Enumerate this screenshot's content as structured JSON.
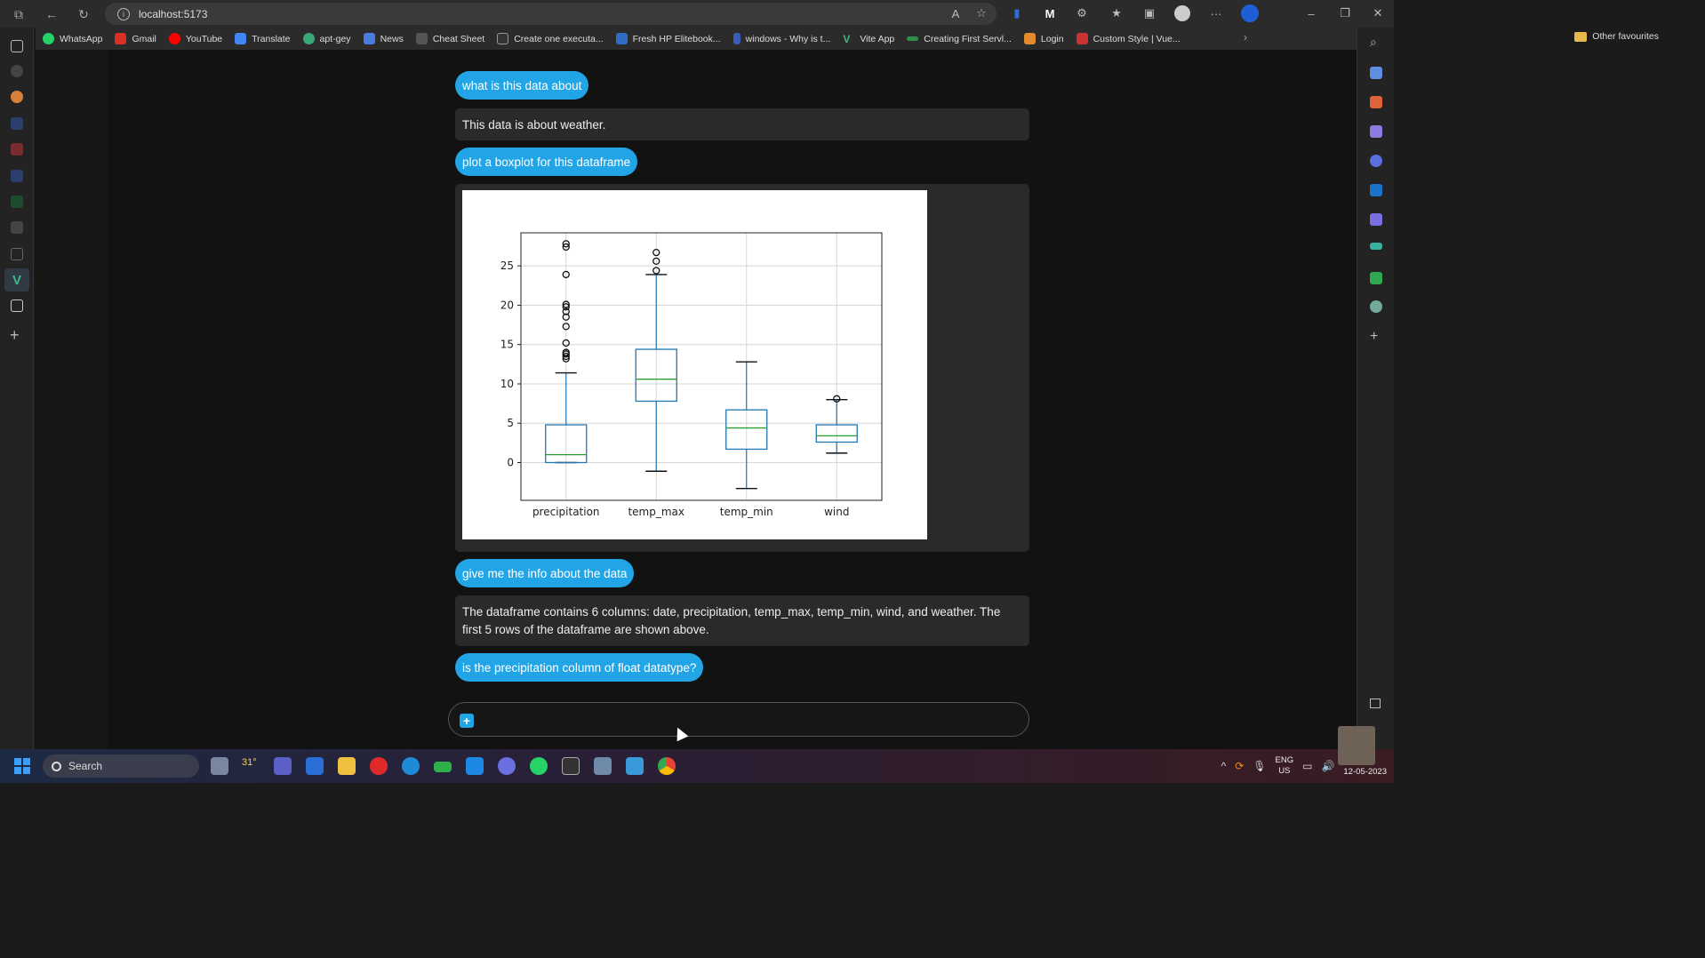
{
  "browser": {
    "url": "localhost:5173",
    "bookmarks": [
      "WhatsApp",
      "Gmail",
      "YouTube",
      "Translate",
      "apt-gey",
      "News",
      "Cheat Sheet",
      "Create one executa...",
      "Fresh HP Elitebook...",
      "windows - Why is t...",
      "Vite App",
      "Creating First Servl...",
      "Login",
      "Custom Style | Vue..."
    ],
    "other_favourites": "Other favourites"
  },
  "chat": {
    "messages": [
      {
        "role": "user",
        "text": "what is this data about"
      },
      {
        "role": "bot",
        "text": "This data is about weather."
      },
      {
        "role": "user",
        "text": "plot a boxplot for this dataframe"
      },
      {
        "role": "user",
        "text": "give me the info about the data"
      },
      {
        "role": "bot",
        "text": "The dataframe contains 6 columns: date, precipitation, temp_max, temp_min, wind, and weather. The first 5 rows of the dataframe are shown above."
      },
      {
        "role": "user",
        "text": "is the precipitation column of float datatype?"
      }
    ],
    "input_placeholder": ""
  },
  "chart_data": {
    "type": "boxplot",
    "categories": [
      "precipitation",
      "temp_max",
      "temp_min",
      "wind"
    ],
    "ylim": [
      -4.8,
      29.2
    ],
    "yticks": [
      0,
      5,
      10,
      15,
      20,
      25
    ],
    "grid": true,
    "boxes": [
      {
        "name": "precipitation",
        "whisker_low": 0,
        "q1": 0,
        "median": 1.0,
        "q3": 4.8,
        "whisker_high": 11.4,
        "outliers": [
          13.2,
          13.5,
          13.8,
          14.0,
          15.2,
          17.3,
          18.5,
          19.2,
          19.8,
          20.1,
          23.9,
          27.4,
          27.8
        ]
      },
      {
        "name": "temp_max",
        "whisker_low": -1.1,
        "q1": 7.8,
        "median": 10.6,
        "q3": 14.4,
        "whisker_high": 23.9,
        "outliers": [
          24.4,
          25.6,
          26.7
        ]
      },
      {
        "name": "temp_min",
        "whisker_low": -3.3,
        "q1": 1.7,
        "median": 4.4,
        "q3": 6.7,
        "whisker_high": 12.8,
        "outliers": []
      },
      {
        "name": "wind",
        "whisker_low": 1.2,
        "q1": 2.6,
        "median": 3.4,
        "q3": 4.8,
        "whisker_high": 8.0,
        "outliers": [
          8.1
        ]
      }
    ],
    "box_color": "#1f77b4",
    "median_color": "#2ca02c"
  },
  "taskbar": {
    "search_label": "Search",
    "weather_temp": "31°",
    "lang_top": "ENG",
    "lang_bottom": "US",
    "date": "12-05-2023"
  }
}
